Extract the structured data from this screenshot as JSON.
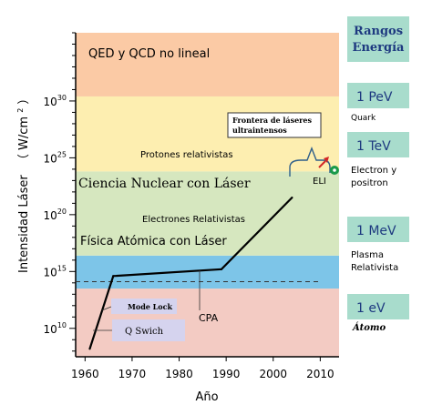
{
  "chart_data": {
    "type": "line",
    "xlabel": "Año",
    "ylabel": "Intensidad Láser",
    "ylabel_unit": "（ W/cm",
    "ylabel_unit_sup": "2",
    "ylabel_unit_close": "）",
    "x_ticks": [
      1960,
      1970,
      1980,
      1990,
      2000,
      2010
    ],
    "xlim": [
      1958,
      2014
    ],
    "y_log_exponent_range": [
      7.5,
      36
    ],
    "y_ticks": [
      {
        "base": "10",
        "exp": "10",
        "value_exp": 10
      },
      {
        "base": "10",
        "exp": "15",
        "value_exp": 15
      },
      {
        "base": "10",
        "exp": "20",
        "value_exp": 20
      },
      {
        "base": "10",
        "exp": "25",
        "value_exp": 25
      },
      {
        "base": "10",
        "exp": "30",
        "value_exp": 30
      }
    ],
    "series": [
      {
        "x": [
          1961,
          1966,
          1989,
          2004
        ],
        "y_exp": [
          8.2,
          14.6,
          15.2,
          21.5
        ],
        "color": "#000000"
      }
    ],
    "threshold_line_exp": 14.1,
    "bands": [
      {
        "label": "Física Atómica con Láser",
        "from_exp": 13.5,
        "to_exp": 16.4,
        "color": "#7dc5e8"
      },
      {
        "label": "Ciencia Nuclear con Láser",
        "from_exp": 16.4,
        "to_exp": 23.8,
        "color": "#d6e7bf"
      },
      {
        "label": "",
        "from_exp": 23.8,
        "to_exp": 30.4,
        "color": "#fdeeb0"
      },
      {
        "label": "QED y QCD no lineal",
        "from_exp": 30.4,
        "to_exp": 36,
        "color": "#fbcaa5"
      }
    ],
    "lower_band_color": "#f3cbc3",
    "annotations": [
      {
        "id": "protones",
        "text": "Protones relativistas"
      },
      {
        "id": "electrones",
        "text": "Electrones Relativistas"
      },
      {
        "id": "cpa",
        "text": "CPA"
      },
      {
        "id": "eli",
        "text": "ELI"
      },
      {
        "id": "mode-lock",
        "text": "Mode Lock"
      },
      {
        "id": "q-switch",
        "text": "Q   Swich"
      },
      {
        "id": "frontera-1",
        "text": "Frontera de láseres"
      },
      {
        "id": "frontera-2",
        "text": "ultraintensos"
      }
    ],
    "energy_panel": {
      "title_line1": "Rangos",
      "title_line2": "Energía",
      "levels": [
        {
          "value": "1 PeV",
          "captions": [
            "Quark"
          ]
        },
        {
          "value": "1 TeV",
          "captions": [
            "Electron y",
            "positron"
          ]
        },
        {
          "value": "1 MeV",
          "captions": [
            "Plasma",
            "Relativista"
          ]
        },
        {
          "value": "1 eV",
          "captions": [
            "Átomo"
          ]
        }
      ],
      "color": "#a8dccc"
    }
  }
}
